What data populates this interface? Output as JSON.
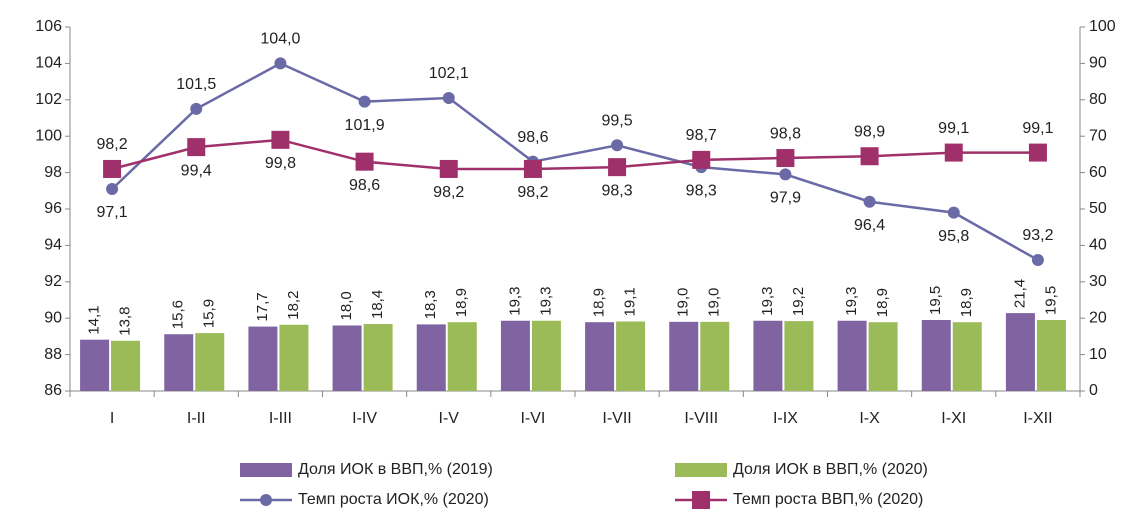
{
  "chart_data": {
    "type": "combo",
    "categories": [
      "I",
      "I-II",
      "I-III",
      "I-IV",
      "I-V",
      "I-VI",
      "I-VII",
      "I-VIII",
      "I-IX",
      "I-X",
      "I-XI",
      "I-XII"
    ],
    "ylim": [
      86,
      106
    ],
    "yticks": [
      86,
      88,
      90,
      92,
      94,
      96,
      98,
      100,
      102,
      104,
      106
    ],
    "y2lim": [
      0,
      100
    ],
    "y2ticks": [
      0,
      10,
      20,
      30,
      40,
      50,
      60,
      70,
      80,
      90,
      100
    ],
    "series": [
      {
        "name": "Доля ИОК в ВВП,% (2019)",
        "type": "bar",
        "axis": "y2",
        "color": "#8064a2",
        "values": [
          14.1,
          15.6,
          17.7,
          18.0,
          18.3,
          19.3,
          18.9,
          19.0,
          19.3,
          19.3,
          19.5,
          21.4
        ],
        "value_labels": [
          "14,1",
          "15,6",
          "17,7",
          "18,0",
          "18,3",
          "19,3",
          "18,9",
          "19,0",
          "19,3",
          "19,3",
          "19,5",
          "21,4"
        ]
      },
      {
        "name": "Доля ИОК в ВВП,% (2020)",
        "type": "bar",
        "axis": "y2",
        "color": "#9bbb59",
        "values": [
          13.8,
          15.9,
          18.2,
          18.4,
          18.9,
          19.3,
          19.1,
          19.0,
          19.2,
          18.9,
          18.9,
          19.5
        ],
        "value_labels": [
          "13,8",
          "15,9",
          "18,2",
          "18,4",
          "18,9",
          "19,3",
          "19,1",
          "19,0",
          "19,2",
          "18,9",
          "18,9",
          "19,5"
        ]
      },
      {
        "name": "Темп роста ИОК,% (2020)",
        "type": "line",
        "marker": "circle",
        "color": "#6a6aa6",
        "values": [
          97.1,
          101.5,
          104.0,
          101.9,
          102.1,
          98.6,
          99.5,
          98.3,
          97.9,
          96.4,
          95.8,
          93.2
        ],
        "value_labels": [
          "97,1",
          "101,5",
          "104,0",
          "101,9",
          "102,1",
          "98,6",
          "99,5",
          "98,3",
          "97,9",
          "96,4",
          "95,8",
          "93,2"
        ]
      },
      {
        "name": "Темп роста ВВП,% (2020)",
        "type": "line",
        "marker": "square",
        "color": "#a0306a",
        "values": [
          98.2,
          99.4,
          99.8,
          98.6,
          98.2,
          98.2,
          98.3,
          98.7,
          98.8,
          98.9,
          99.1,
          99.1
        ],
        "value_labels": [
          "98,2",
          "99,4",
          "99,8",
          "98,6",
          "98,2",
          "98,2",
          "98,3",
          "98,7",
          "98,8",
          "98,9",
          "99,1",
          "99,1"
        ]
      }
    ]
  }
}
